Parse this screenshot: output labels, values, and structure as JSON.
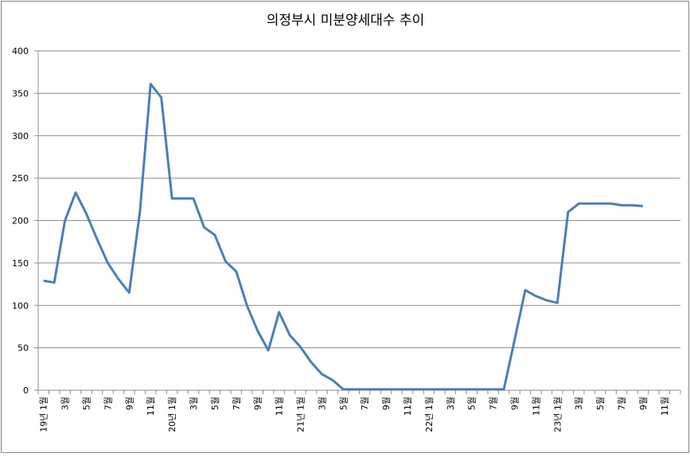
{
  "chart_data": {
    "type": "line",
    "title": "의정부시 미분양세대수 추이",
    "categories": [
      "19년 1월",
      null,
      "3월",
      null,
      "5월",
      null,
      "7월",
      null,
      "9월",
      null,
      "11월",
      null,
      "20년 1월",
      null,
      "3월",
      null,
      "5월",
      null,
      "7월",
      null,
      "9월",
      null,
      "11월",
      null,
      "21년 1월",
      null,
      "3월",
      null,
      "5월",
      null,
      "7월",
      null,
      "9월",
      null,
      "11월",
      null,
      "22년 1월",
      null,
      "3월",
      null,
      "5월",
      null,
      "7월",
      null,
      "9월",
      null,
      "11월",
      null,
      "23년 1월",
      null,
      "3월",
      null,
      "5월",
      null,
      "7월",
      null,
      "9월",
      null,
      "11월",
      null
    ],
    "series": [
      {
        "name": "미분양세대수",
        "color": "#4a7ebb",
        "values": [
          129,
          127,
          200,
          233,
          208,
          178,
          150,
          131,
          115,
          210,
          361,
          345,
          226,
          226,
          226,
          192,
          183,
          152,
          140,
          100,
          70,
          47,
          92,
          65,
          51,
          33,
          19,
          12,
          1,
          1,
          1,
          1,
          1,
          1,
          1,
          1,
          1,
          1,
          1,
          1,
          1,
          1,
          1,
          1,
          59,
          118,
          111,
          106,
          103,
          210,
          220,
          220,
          220,
          220,
          218,
          218,
          217,
          null,
          null,
          null
        ]
      }
    ],
    "ylim": [
      0,
      400
    ],
    "yticks": [
      0,
      50,
      100,
      150,
      200,
      250,
      300,
      350,
      400
    ],
    "grid": true
  }
}
